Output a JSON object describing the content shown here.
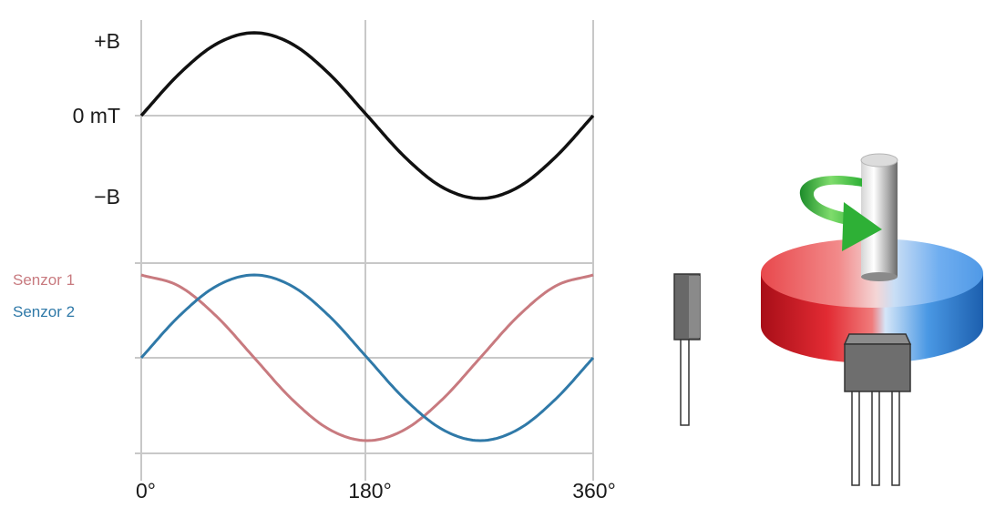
{
  "chart_data": [
    {
      "type": "line",
      "x": [
        0,
        30,
        60,
        90,
        120,
        150,
        180,
        210,
        240,
        270,
        300,
        330,
        360
      ],
      "xlabel": "",
      "ylabel": "",
      "y_ticks": [
        "+B",
        "0 mT",
        "−B"
      ],
      "series": [
        {
          "values": [
            0,
            0.5,
            0.866,
            1,
            0.866,
            0.5,
            0,
            -0.5,
            -0.866,
            -1,
            -0.866,
            -0.5,
            0
          ]
        }
      ],
      "xlim": [
        0,
        360
      ],
      "ylim": [
        -1,
        1
      ]
    },
    {
      "type": "line",
      "x": [
        0,
        30,
        60,
        90,
        120,
        150,
        180,
        210,
        240,
        270,
        300,
        330,
        360
      ],
      "x_ticks": [
        "0°",
        "180°",
        "360°"
      ],
      "xlabel": "",
      "ylabel": "",
      "series": [
        {
          "name": "Senzor 1",
          "color": "#c87a7f",
          "values": [
            1,
            0.866,
            0.5,
            0,
            -0.5,
            -0.866,
            -1,
            -0.866,
            -0.5,
            0,
            0.5,
            0.866,
            1
          ]
        },
        {
          "name": "Senzor 2",
          "color": "#2f79a8",
          "values": [
            0,
            0.5,
            0.866,
            1,
            0.866,
            0.5,
            0,
            -0.5,
            -0.866,
            -1,
            -0.866,
            -0.5,
            0
          ]
        }
      ],
      "xlim": [
        0,
        360
      ],
      "ylim": [
        -1,
        1
      ]
    }
  ],
  "colors": {
    "top_curve": "#111111",
    "grid": "#c8c8c8",
    "arrow": "#2eb036",
    "magnet_north": "#e23b3b",
    "magnet_south": "#3f8ee0",
    "sensor_body": "#666666"
  },
  "icons": {
    "rotation": "curved-arrow-icon",
    "magnet": "ring-magnet",
    "shaft": "shaft",
    "sensor_side": "hall-sensor-side",
    "sensor_front": "hall-sensor-front"
  }
}
